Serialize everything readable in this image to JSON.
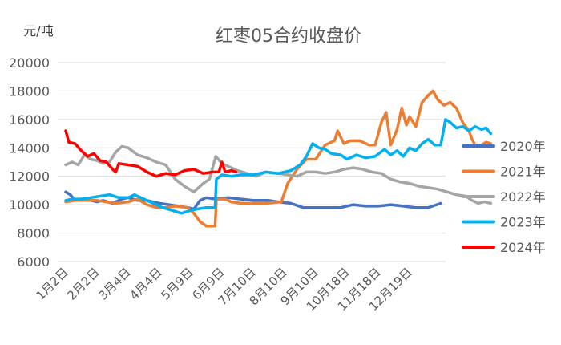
{
  "chart_data": {
    "type": "line",
    "title": "红枣05合约收盘价",
    "unit_label": "元/吨",
    "ylim": [
      6000,
      20000
    ],
    "yticks": [
      "20000",
      "18000",
      "16000",
      "14000",
      "12000",
      "10000",
      "8000",
      "6000"
    ],
    "x_categories": [
      "1月2日",
      "2月2日",
      "3月4日",
      "4月4日",
      "5月9日",
      "6月9日",
      "7月10日",
      "8月10日",
      "9月10日",
      "10月18日",
      "11月18日",
      "12月19日"
    ],
    "legend_position": "right",
    "grid": "horizontal",
    "series": [
      {
        "name": "2020年",
        "color": "#4472c4",
        "points": [
          [
            0,
            10900
          ],
          [
            0.15,
            10700
          ],
          [
            0.3,
            10300
          ],
          [
            0.5,
            10400
          ],
          [
            0.8,
            10300
          ],
          [
            1,
            10200
          ],
          [
            1.2,
            10300
          ],
          [
            1.5,
            10100
          ],
          [
            1.8,
            10400
          ],
          [
            2,
            10500
          ],
          [
            2.3,
            10300
          ],
          [
            2.6,
            10300
          ],
          [
            3,
            10100
          ],
          [
            3.3,
            10000
          ],
          [
            3.6,
            9900
          ],
          [
            3.9,
            9800
          ],
          [
            4.1,
            9700
          ],
          [
            4.3,
            10300
          ],
          [
            4.5,
            10500
          ],
          [
            4.8,
            10400
          ],
          [
            5.2,
            10500
          ],
          [
            5.6,
            10400
          ],
          [
            6,
            10300
          ],
          [
            6.5,
            10300
          ],
          [
            6.8,
            10200
          ],
          [
            7.2,
            10100
          ],
          [
            7.6,
            9800
          ],
          [
            8,
            9800
          ],
          [
            8.4,
            9800
          ],
          [
            8.8,
            9800
          ],
          [
            9.2,
            10000
          ],
          [
            9.6,
            9900
          ],
          [
            10,
            9900
          ],
          [
            10.4,
            10000
          ],
          [
            10.8,
            9900
          ],
          [
            11.2,
            9800
          ],
          [
            11.6,
            9800
          ],
          [
            12,
            10100
          ]
        ]
      },
      {
        "name": "2021年",
        "color": "#ed7d31",
        "points": [
          [
            0,
            10200
          ],
          [
            0.3,
            10300
          ],
          [
            0.6,
            10300
          ],
          [
            1,
            10300
          ],
          [
            1.3,
            10200
          ],
          [
            1.6,
            10100
          ],
          [
            2,
            10200
          ],
          [
            2.3,
            10400
          ],
          [
            2.6,
            10000
          ],
          [
            2.9,
            9800
          ],
          [
            3.2,
            9800
          ],
          [
            3.5,
            9900
          ],
          [
            3.9,
            9800
          ],
          [
            4.1,
            9400
          ],
          [
            4.3,
            8800
          ],
          [
            4.5,
            8500
          ],
          [
            4.7,
            8500
          ],
          [
            4.78,
            8500
          ],
          [
            4.82,
            10400
          ],
          [
            5.1,
            10400
          ],
          [
            5.3,
            10200
          ],
          [
            5.6,
            10100
          ],
          [
            6,
            10100
          ],
          [
            6.4,
            10100
          ],
          [
            6.9,
            10200
          ],
          [
            7.1,
            11500
          ],
          [
            7.4,
            12500
          ],
          [
            7.7,
            13200
          ],
          [
            8,
            13200
          ],
          [
            8.3,
            14200
          ],
          [
            8.6,
            14500
          ],
          [
            8.7,
            15200
          ],
          [
            8.9,
            14300
          ],
          [
            9.1,
            14500
          ],
          [
            9.4,
            14500
          ],
          [
            9.7,
            14200
          ],
          [
            9.9,
            14200
          ],
          [
            10.1,
            15800
          ],
          [
            10.25,
            16500
          ],
          [
            10.4,
            14200
          ],
          [
            10.6,
            15300
          ],
          [
            10.75,
            16800
          ],
          [
            10.9,
            15600
          ],
          [
            11,
            16200
          ],
          [
            11.2,
            15500
          ],
          [
            11.4,
            17200
          ],
          [
            11.6,
            17700
          ],
          [
            11.75,
            18000
          ],
          [
            11.9,
            17400
          ],
          [
            12.1,
            17000
          ],
          [
            12.3,
            17200
          ],
          [
            12.5,
            16800
          ],
          [
            12.7,
            15800
          ],
          [
            12.9,
            15200
          ],
          [
            13.0,
            14600
          ],
          [
            13.1,
            14200
          ],
          [
            13.3,
            14200
          ],
          [
            13.45,
            14400
          ],
          [
            13.6,
            14300
          ]
        ]
      },
      {
        "name": "2022年",
        "color": "#a5a5a5",
        "points": [
          [
            0,
            12800
          ],
          [
            0.2,
            13000
          ],
          [
            0.4,
            12800
          ],
          [
            0.6,
            13500
          ],
          [
            0.8,
            13200
          ],
          [
            1,
            13100
          ],
          [
            1.2,
            12900
          ],
          [
            1.4,
            13000
          ],
          [
            1.6,
            13700
          ],
          [
            1.8,
            14100
          ],
          [
            2,
            14000
          ],
          [
            2.3,
            13500
          ],
          [
            2.6,
            13300
          ],
          [
            2.9,
            13000
          ],
          [
            3.2,
            12800
          ],
          [
            3.5,
            11800
          ],
          [
            3.8,
            11300
          ],
          [
            4.1,
            10900
          ],
          [
            4.4,
            11500
          ],
          [
            4.6,
            11800
          ],
          [
            4.8,
            13400
          ],
          [
            5,
            12900
          ],
          [
            5.2,
            12700
          ],
          [
            5.5,
            12400
          ],
          [
            5.8,
            12200
          ],
          [
            6.1,
            12000
          ],
          [
            6.4,
            12300
          ],
          [
            6.8,
            12200
          ],
          [
            7.1,
            12100
          ],
          [
            7.4,
            12000
          ],
          [
            7.7,
            12300
          ],
          [
            8,
            12300
          ],
          [
            8.3,
            12200
          ],
          [
            8.6,
            12300
          ],
          [
            8.9,
            12500
          ],
          [
            9.2,
            12600
          ],
          [
            9.5,
            12500
          ],
          [
            9.8,
            12300
          ],
          [
            10.1,
            12200
          ],
          [
            10.4,
            11800
          ],
          [
            10.7,
            11600
          ],
          [
            11,
            11500
          ],
          [
            11.3,
            11300
          ],
          [
            11.6,
            11200
          ],
          [
            11.9,
            11100
          ],
          [
            12.2,
            10900
          ],
          [
            12.5,
            10700
          ],
          [
            12.8,
            10600
          ],
          [
            13.0,
            10300
          ],
          [
            13.2,
            10100
          ],
          [
            13.4,
            10200
          ],
          [
            13.6,
            10100
          ]
        ]
      },
      {
        "name": "2023年",
        "color": "#00b0f0",
        "points": [
          [
            0,
            10300
          ],
          [
            0.2,
            10400
          ],
          [
            0.5,
            10400
          ],
          [
            0.8,
            10500
          ],
          [
            1.1,
            10600
          ],
          [
            1.4,
            10700
          ],
          [
            1.7,
            10500
          ],
          [
            2,
            10500
          ],
          [
            2.2,
            10700
          ],
          [
            2.5,
            10400
          ],
          [
            2.8,
            10100
          ],
          [
            3.1,
            9800
          ],
          [
            3.4,
            9600
          ],
          [
            3.7,
            9400
          ],
          [
            4,
            9600
          ],
          [
            4.2,
            9700
          ],
          [
            4.5,
            9800
          ],
          [
            4.7,
            9800
          ],
          [
            4.78,
            9800
          ],
          [
            4.82,
            11800
          ],
          [
            5,
            12100
          ],
          [
            5.3,
            12000
          ],
          [
            5.6,
            12100
          ],
          [
            6,
            12100
          ],
          [
            6.4,
            12300
          ],
          [
            6.8,
            12200
          ],
          [
            7.2,
            12400
          ],
          [
            7.5,
            12800
          ],
          [
            7.7,
            13400
          ],
          [
            7.9,
            14300
          ],
          [
            8.1,
            14000
          ],
          [
            8.3,
            13900
          ],
          [
            8.5,
            13600
          ],
          [
            8.8,
            13500
          ],
          [
            9,
            13200
          ],
          [
            9.3,
            13500
          ],
          [
            9.6,
            13300
          ],
          [
            9.9,
            13400
          ],
          [
            10.2,
            13900
          ],
          [
            10.4,
            13500
          ],
          [
            10.6,
            13800
          ],
          [
            10.8,
            13400
          ],
          [
            11,
            14000
          ],
          [
            11.2,
            13800
          ],
          [
            11.4,
            14300
          ],
          [
            11.6,
            14600
          ],
          [
            11.8,
            14200
          ],
          [
            12,
            14200
          ],
          [
            12.15,
            16000
          ],
          [
            12.3,
            15800
          ],
          [
            12.5,
            15400
          ],
          [
            12.7,
            15500
          ],
          [
            12.9,
            15200
          ],
          [
            13.1,
            15500
          ],
          [
            13.3,
            15300
          ],
          [
            13.45,
            15400
          ],
          [
            13.6,
            15000
          ]
        ]
      },
      {
        "name": "2024年",
        "color": "#ff0000",
        "points": [
          [
            0,
            15200
          ],
          [
            0.1,
            14400
          ],
          [
            0.3,
            14300
          ],
          [
            0.5,
            13800
          ],
          [
            0.7,
            13400
          ],
          [
            0.9,
            13600
          ],
          [
            1.1,
            13100
          ],
          [
            1.3,
            13000
          ],
          [
            1.5,
            12500
          ],
          [
            1.6,
            12300
          ],
          [
            1.7,
            12900
          ],
          [
            2,
            12800
          ],
          [
            2.3,
            12700
          ],
          [
            2.6,
            12300
          ],
          [
            2.9,
            12000
          ],
          [
            3.2,
            12200
          ],
          [
            3.5,
            12100
          ],
          [
            3.8,
            12400
          ],
          [
            4.1,
            12500
          ],
          [
            4.4,
            12200
          ],
          [
            4.7,
            12300
          ],
          [
            4.9,
            12300
          ],
          [
            5,
            13000
          ],
          [
            5.1,
            12300
          ],
          [
            5.3,
            12400
          ],
          [
            5.45,
            12300
          ]
        ]
      }
    ]
  }
}
